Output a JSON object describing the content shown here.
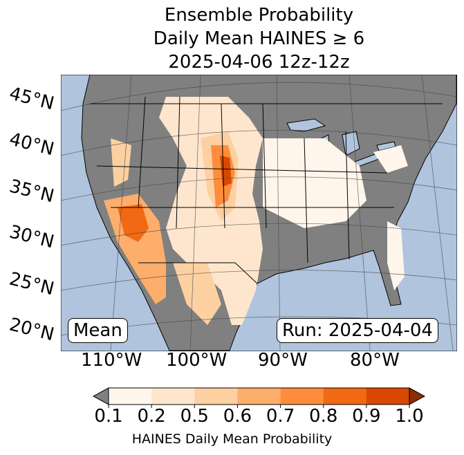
{
  "title": {
    "line1": "Ensemble Probability",
    "line2": "Daily Mean HAINES ≥ 6",
    "line3": "2025-04-06 12z-12z"
  },
  "map": {
    "lat_labels": [
      "45°N",
      "40°N",
      "35°N",
      "30°N",
      "25°N",
      "20°N"
    ],
    "lon_labels": [
      "110°W",
      "100°W",
      "90°W",
      "80°W"
    ],
    "stat_label": "Mean",
    "run_label": "Run: 2025-04-04",
    "ocean_color": "#b0c4de",
    "land_color": "#808080"
  },
  "colorbar": {
    "ticks": [
      "0.1",
      "0.2",
      "0.5",
      "0.6",
      "0.7",
      "0.8",
      "0.9",
      "1.0"
    ],
    "colors": [
      "#fff5eb",
      "#fee6ce",
      "#fdd0a2",
      "#fdae6b",
      "#fd8d3c",
      "#f16913",
      "#d94801",
      "#8c2d04"
    ],
    "under_color": "#808080",
    "label": "HAINES Daily Mean Probability"
  }
}
